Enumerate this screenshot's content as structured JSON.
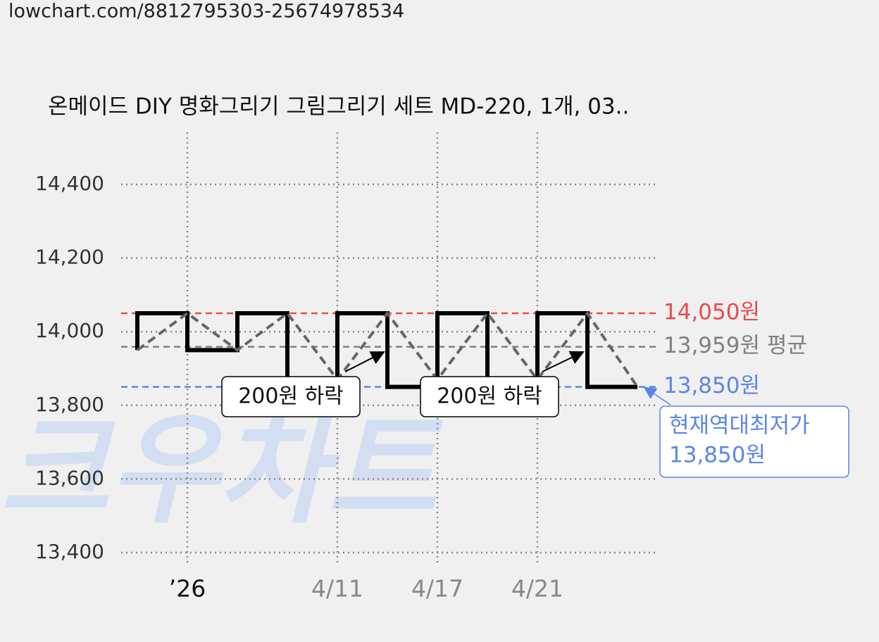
{
  "url": "lowchart.com/8812795303-25674978534",
  "chart_data": {
    "type": "line",
    "title": "온메이드 DIY 명화그리기 그림그리기 세트 MD-220, 1개, 03..",
    "watermark": "크우차트",
    "categories": [
      null,
      "’26",
      null,
      null,
      "4/11",
      null,
      "4/17",
      null,
      "4/21",
      null,
      null
    ],
    "series": [
      {
        "style": "step",
        "color": "#000000",
        "values": [
          13950,
          14050,
          13950,
          14050,
          13850,
          14050,
          13850,
          14050,
          13850,
          14050,
          13850
        ]
      },
      {
        "style": "dashed",
        "color": "#666666",
        "values": [
          13950,
          14050,
          13950,
          14050,
          13870,
          14050,
          13870,
          14050,
          13870,
          14050,
          13850
        ]
      }
    ],
    "ylim": [
      13400,
      14400
    ],
    "yticks": [
      {
        "value": 13400,
        "label": "13,400"
      },
      {
        "value": 13600,
        "label": "13,600"
      },
      {
        "value": 13800,
        "label": "13,800"
      },
      {
        "value": 14000,
        "label": "14,000"
      },
      {
        "value": 14200,
        "label": "14,200"
      },
      {
        "value": 14400,
        "label": "14,400"
      }
    ],
    "grid": true,
    "ref_lines": [
      {
        "value": 14050,
        "label": "14,050원",
        "color": "#e84c4c"
      },
      {
        "value": 13959,
        "label": "13,959원 평균",
        "color": "#808080"
      },
      {
        "value": 13850,
        "label": "13,850원",
        "color": "#5b86e5"
      }
    ],
    "annotations": [
      "200원 하락",
      "200원 하락"
    ],
    "low_note": [
      "현재역대최저가",
      "13,850원"
    ]
  }
}
